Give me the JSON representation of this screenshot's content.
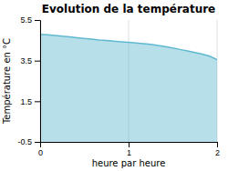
{
  "chart_data": {
    "type": "area",
    "title": "Evolution de la température",
    "x_label": "heure par heure",
    "y_label": "Température en °C",
    "x": [
      0.0,
      0.083,
      0.167,
      0.25,
      0.333,
      0.417,
      0.5,
      0.583,
      0.667,
      0.75,
      0.833,
      0.917,
      1.0,
      1.083,
      1.167,
      1.25,
      1.333,
      1.417,
      1.5,
      1.583,
      1.667,
      1.75,
      1.833,
      1.917,
      2.0
    ],
    "values": [
      4.8,
      4.77,
      4.74,
      4.7,
      4.67,
      4.63,
      4.59,
      4.56,
      4.52,
      4.49,
      4.46,
      4.43,
      4.4,
      4.37,
      4.34,
      4.3,
      4.25,
      4.19,
      4.12,
      4.05,
      3.98,
      3.9,
      3.82,
      3.72,
      3.55
    ],
    "color": "#60b8d0",
    "xlim": [
      0,
      2
    ],
    "ylim": [
      -0.5,
      5.5
    ],
    "xticks": [
      0,
      1,
      2
    ],
    "yticks": [
      -0.5,
      1.5,
      3.5,
      5.5
    ],
    "grid": "x"
  }
}
